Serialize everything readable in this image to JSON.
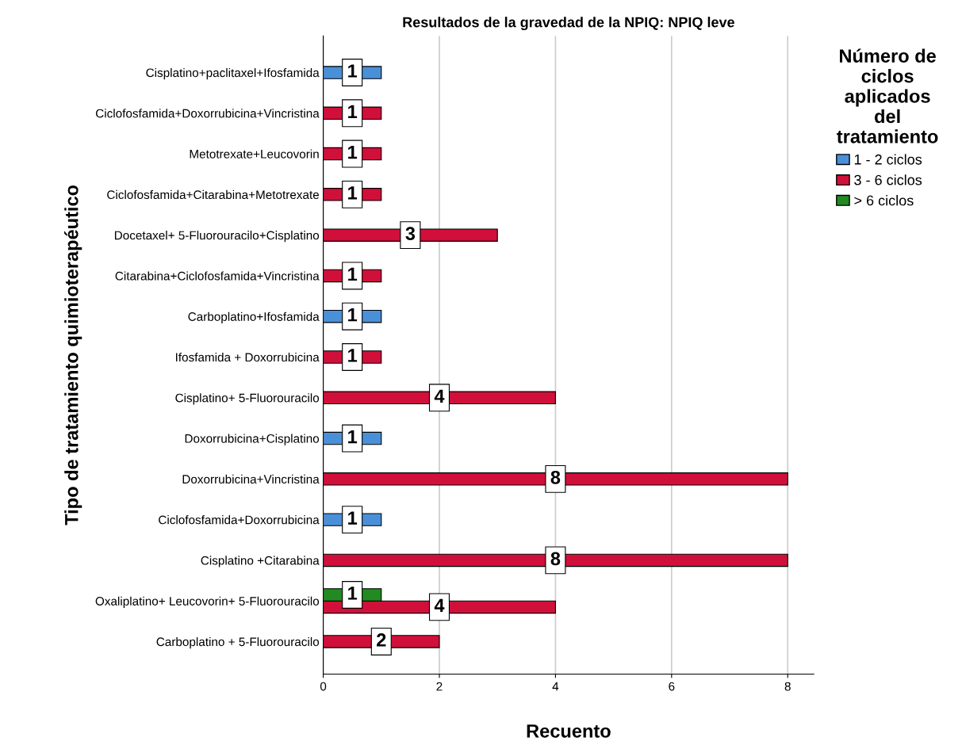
{
  "chart_data": {
    "type": "bar",
    "orientation": "horizontal",
    "title": "Resultados de la gravedad de la NPIQ: NPIQ leve",
    "xlabel": "Recuento",
    "ylabel": "Tipo de tratamiento quimioterapéutico",
    "legend_title": "Número de\nciclos\naplicados\ndel\ntratamiento",
    "legend": "right",
    "categories": [
      "Cisplatino+paclitaxel+Ifosfamida",
      "Ciclofosfamida+Doxorrubicina+Vincristina",
      "Metotrexate+Leucovorin",
      "Ciclofosfamida+Citarabina+Metotrexate",
      "Docetaxel+ 5-Fluorouracilo+Cisplatino",
      "Citarabina+Ciclofosfamida+Vincristina",
      "Carboplatino+Ifosfamida",
      "Ifosfamida + Doxorrubicina",
      "Cisplatino+ 5-Fluorouracilo",
      "Doxorrubicina+Cisplatino",
      "Doxorrubicina+Vincristina",
      "Ciclofosfamida+Doxorrubicina",
      "Cisplatino +Citarabina",
      "Oxaliplatino+ Leucovorin+ 5-Fluorouracilo",
      "Carboplatino + 5-Fluorouracilo"
    ],
    "series": [
      {
        "name": "1 - 2 ciclos",
        "color": "#4a90d9",
        "values": [
          1,
          null,
          null,
          null,
          null,
          null,
          1,
          null,
          null,
          1,
          null,
          1,
          null,
          null,
          null
        ]
      },
      {
        "name": "3 - 6 ciclos",
        "color": "#d0103a",
        "values": [
          null,
          1,
          1,
          1,
          3,
          1,
          null,
          1,
          4,
          null,
          8,
          null,
          8,
          4,
          2
        ]
      },
      {
        "name": "> 6 ciclos",
        "color": "#218a21",
        "values": [
          null,
          null,
          null,
          null,
          null,
          null,
          null,
          null,
          null,
          null,
          null,
          null,
          null,
          1,
          null
        ]
      }
    ],
    "xlim": [
      0,
      8.45
    ],
    "xticks": [
      0,
      2,
      4,
      6,
      8
    ],
    "grid": "x",
    "data_labels": true
  }
}
